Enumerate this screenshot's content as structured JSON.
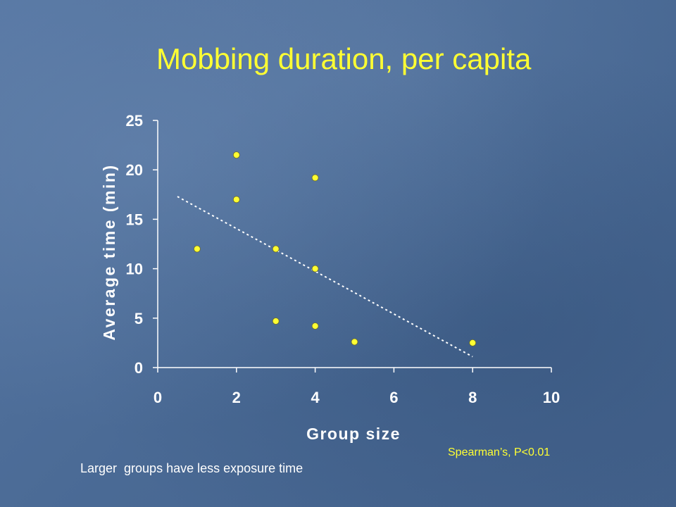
{
  "slide": {
    "title": "Mobbing duration, per capita",
    "caption": "Larger  groups have less exposure time",
    "stat_note": "Spearman’s, P<0.01"
  },
  "colors": {
    "title": "#ffff33",
    "points": "#ffff33",
    "axes": "#ffffff",
    "trendline": "#ffffff"
  },
  "chart_data": {
    "type": "scatter",
    "xlabel": "Group size",
    "ylabel": "Average time (min)",
    "xlim": [
      0,
      10
    ],
    "ylim": [
      0,
      25
    ],
    "xticks": [
      0,
      2,
      4,
      6,
      8,
      10
    ],
    "yticks": [
      0,
      5,
      10,
      15,
      20,
      25
    ],
    "xtick_labels": [
      "0",
      "2",
      "4",
      "6",
      "8",
      "10"
    ],
    "ytick_labels": [
      "0",
      "5",
      "10",
      "15",
      "20",
      "25"
    ],
    "grid": false,
    "series": [
      {
        "points": [
          {
            "x": 1,
            "y": 12
          },
          {
            "x": 2,
            "y": 21.5
          },
          {
            "x": 2,
            "y": 17
          },
          {
            "x": 3,
            "y": 12
          },
          {
            "x": 3,
            "y": 4.7
          },
          {
            "x": 4,
            "y": 19.2
          },
          {
            "x": 4,
            "y": 10
          },
          {
            "x": 4,
            "y": 4.2
          },
          {
            "x": 5,
            "y": 2.6
          },
          {
            "x": 8,
            "y": 2.5
          }
        ]
      }
    ],
    "trendline": {
      "style": "dotted",
      "start": {
        "x": 0.5,
        "y": 17.3
      },
      "end": {
        "x": 8,
        "y": 1.1
      }
    }
  }
}
